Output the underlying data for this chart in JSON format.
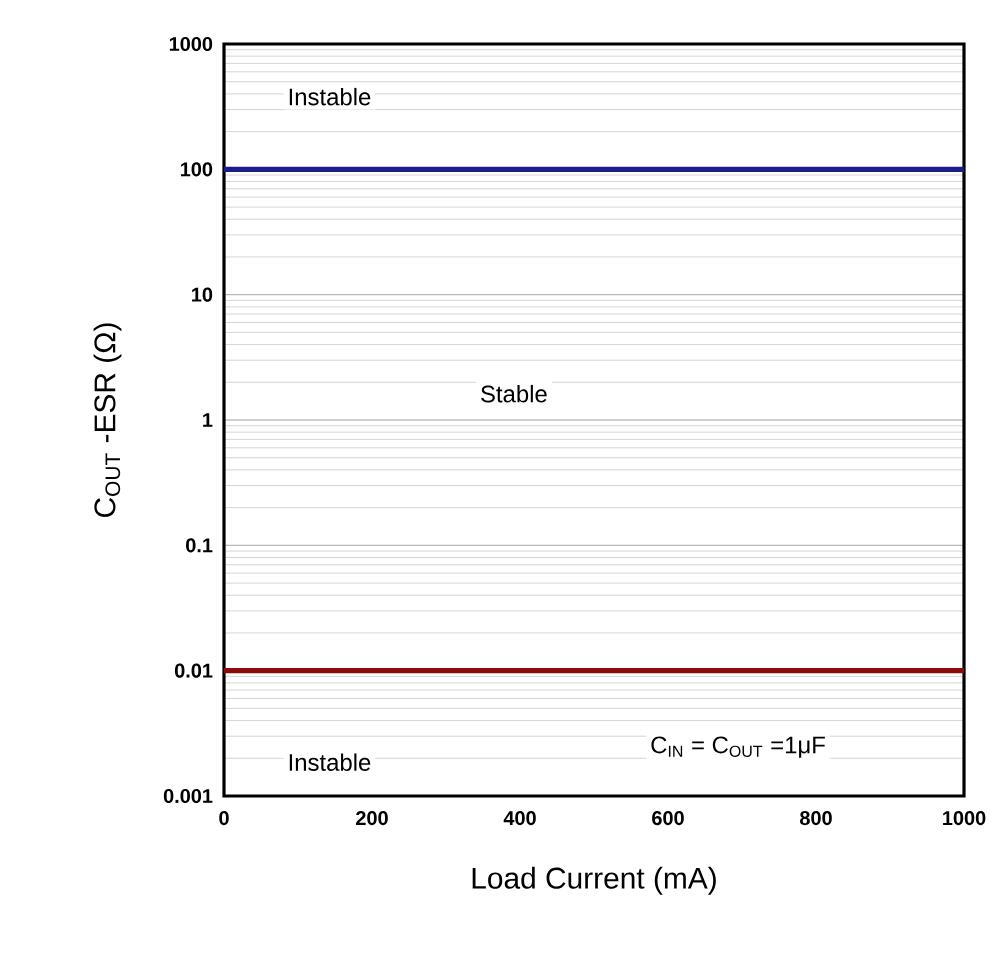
{
  "chart_data": {
    "type": "line",
    "xlabel": "Load Current (mA)",
    "ylabel": "C$_{OUT}$ -ESR (Ω)",
    "annotations": [
      "Instable",
      "Stable",
      "Instable",
      "C$_{IN}$ = C$_{OUT}$ =1μF"
    ],
    "ref_lines": [
      {
        "axis": "y",
        "value": 100,
        "color": "#1c1c8c",
        "line_style": "solid"
      },
      {
        "axis": "y",
        "value": 0.01,
        "color": "#8b0a0a",
        "line_style": "solid"
      }
    ],
    "xlim": [
      0,
      1000
    ],
    "xticks": [
      0,
      200,
      400,
      600,
      800,
      1000
    ],
    "ylim": [
      0.001,
      1000
    ],
    "yticks": [
      0.001,
      0.01,
      0.1,
      1,
      10,
      100,
      1000
    ],
    "log": "y",
    "grid": "y"
  }
}
